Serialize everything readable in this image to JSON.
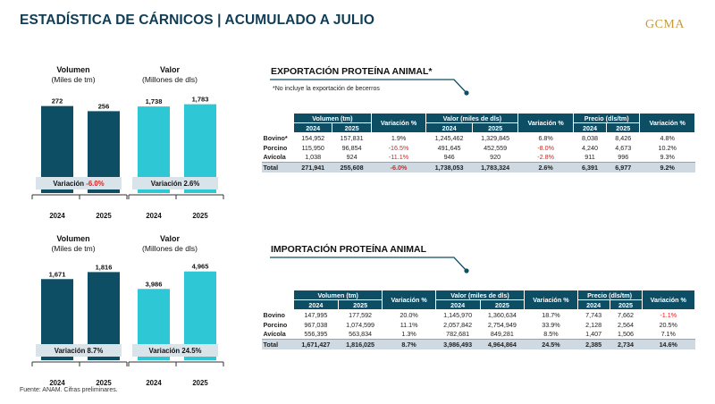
{
  "header": {
    "title": "ESTADÍSTICA DE CÁRNICOS | ACUMULADO A JULIO",
    "logo": "GCMA"
  },
  "colors": {
    "dark_teal": "#0e4e65",
    "cyan": "#2ec7d6",
    "negative": "#e0201e",
    "band": "#d8e3ea"
  },
  "chart_data": [
    {
      "type": "bar",
      "title": "Volumen",
      "subtitle": "(Miles de tm)",
      "categories": [
        "2024",
        "2025"
      ],
      "values": [
        272,
        256
      ],
      "value_labels": [
        "272",
        "256"
      ],
      "variation_label": "Variación",
      "variation_value": "-6.0%",
      "variation_negative": true
    },
    {
      "type": "bar",
      "title": "Valor",
      "subtitle": "(Millones de dls)",
      "categories": [
        "2024",
        "2025"
      ],
      "values": [
        1738,
        1783
      ],
      "value_labels": [
        "1,738",
        "1,783"
      ],
      "variation_label": "Variación",
      "variation_value": "2.6%",
      "variation_negative": false
    },
    {
      "type": "bar",
      "title": "Volumen",
      "subtitle": "(Miles de tm)",
      "categories": [
        "2024",
        "2025"
      ],
      "values": [
        1671,
        1816
      ],
      "value_labels": [
        "1,671",
        "1,816"
      ],
      "variation_label": "Variación",
      "variation_value": "8.7%",
      "variation_negative": false
    },
    {
      "type": "bar",
      "title": "Valor",
      "subtitle": "(Millones de dls)",
      "categories": [
        "2024",
        "2025"
      ],
      "values": [
        3986,
        4965
      ],
      "value_labels": [
        "3,986",
        "4,965"
      ],
      "variation_label": "Variación",
      "variation_value": "24.5%",
      "variation_negative": false
    }
  ],
  "export_table": {
    "title": "EXPORTACIÓN PROTEÍNA ANIMAL*",
    "note": "*No incluye la exportación de becerros",
    "groups": [
      "Volumen (tm)",
      "Variación %",
      "Valor (miles de dls)",
      "Variación %",
      "Precio (dls/tm)",
      "Variación %"
    ],
    "years": [
      "2024",
      "2025"
    ],
    "rows": [
      {
        "label": "Bovino*",
        "cells": [
          "154,952",
          "157,831",
          "1.9%",
          "1,245,462",
          "1,329,845",
          "6.8%",
          "8,038",
          "8,426",
          "4.8%"
        ],
        "neg": [
          false,
          false,
          false,
          false,
          false,
          false,
          false,
          false,
          false
        ]
      },
      {
        "label": "Porcino",
        "cells": [
          "115,950",
          "96,854",
          "-16.5%",
          "491,645",
          "452,559",
          "-8.0%",
          "4,240",
          "4,673",
          "10.2%"
        ],
        "neg": [
          false,
          false,
          true,
          false,
          false,
          true,
          false,
          false,
          false
        ]
      },
      {
        "label": "Avícola",
        "cells": [
          "1,038",
          "924",
          "-11.1%",
          "946",
          "920",
          "-2.8%",
          "911",
          "996",
          "9.3%"
        ],
        "neg": [
          false,
          false,
          true,
          false,
          false,
          true,
          false,
          false,
          false
        ]
      },
      {
        "label": "Total",
        "cells": [
          "271,941",
          "255,608",
          "-6.0%",
          "1,738,053",
          "1,783,324",
          "2.6%",
          "6,391",
          "6,977",
          "9.2%"
        ],
        "neg": [
          false,
          false,
          true,
          false,
          false,
          false,
          false,
          false,
          false
        ]
      }
    ]
  },
  "import_table": {
    "title": "IMPORTACIÓN PROTEÍNA ANIMAL",
    "groups": [
      "Volumen (tm)",
      "Variación %",
      "Valor (miles de dls)",
      "Variación %",
      "Precio (dls/tm)",
      "Variación %"
    ],
    "years": [
      "2024",
      "2025"
    ],
    "rows": [
      {
        "label": "Bovino",
        "cells": [
          "147,995",
          "177,592",
          "20.0%",
          "1,145,970",
          "1,360,634",
          "18.7%",
          "7,743",
          "7,662",
          "-1.1%"
        ],
        "neg": [
          false,
          false,
          false,
          false,
          false,
          false,
          false,
          false,
          true
        ]
      },
      {
        "label": "Porcino",
        "cells": [
          "967,038",
          "1,074,599",
          "11.1%",
          "2,057,842",
          "2,754,949",
          "33.9%",
          "2,128",
          "2,564",
          "20.5%"
        ],
        "neg": [
          false,
          false,
          false,
          false,
          false,
          false,
          false,
          false,
          false
        ]
      },
      {
        "label": "Avícola",
        "cells": [
          "556,395",
          "563,834",
          "1.3%",
          "782,681",
          "849,281",
          "8.5%",
          "1,407",
          "1,506",
          "7.1%"
        ],
        "neg": [
          false,
          false,
          false,
          false,
          false,
          false,
          false,
          false,
          false
        ]
      },
      {
        "label": "Total",
        "cells": [
          "1,671,427",
          "1,816,025",
          "8.7%",
          "3,986,493",
          "4,964,864",
          "24.5%",
          "2,385",
          "2,734",
          "14.6%"
        ],
        "neg": [
          false,
          false,
          false,
          false,
          false,
          false,
          false,
          false,
          false
        ]
      }
    ]
  },
  "footer": {
    "source": "Fuente: ANAM. Cifras preliminares."
  }
}
